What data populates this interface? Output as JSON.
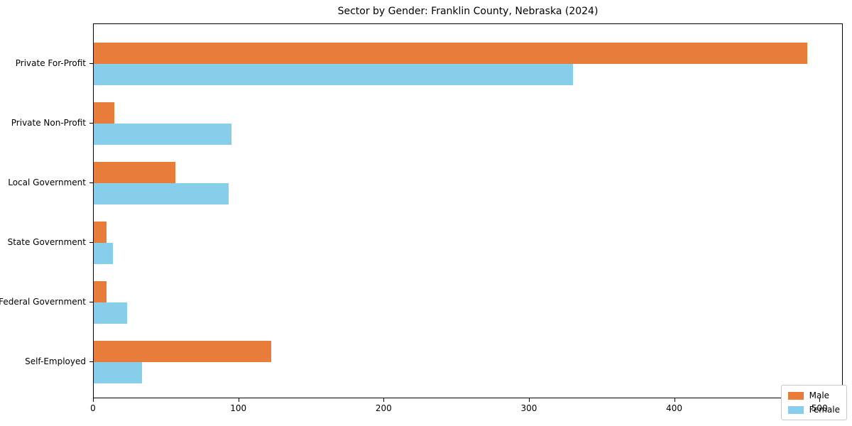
{
  "title": "Sector by Gender: Franklin County, Nebraska (2024)",
  "legend": {
    "male_label": "Male",
    "female_label": "Female"
  },
  "colors": {
    "male": "#e87d3b",
    "female": "#87ceeb",
    "axis": "#000000",
    "background": "#ffffff",
    "legend_border": "#c9c9c9"
  },
  "chart_data": {
    "type": "bar",
    "orientation": "horizontal",
    "title": "Sector by Gender: Franklin County, Nebraska (2024)",
    "categories": [
      "Private For-Profit",
      "Private Non-Profit",
      "Local Government",
      "State Government",
      "Federal Government",
      "Self-Employed"
    ],
    "series": [
      {
        "name": "Male",
        "color": "#e87d3b",
        "values": [
          491,
          14,
          56,
          9,
          9,
          122
        ]
      },
      {
        "name": "Female",
        "color": "#87ceeb",
        "values": [
          330,
          95,
          93,
          13,
          23,
          33
        ]
      }
    ],
    "xlabel": "",
    "ylabel": "",
    "x_ticks": [
      0,
      100,
      200,
      300,
      400,
      500
    ],
    "x_tick_labels": [
      "0",
      "100",
      "200",
      "300",
      "400",
      "500"
    ],
    "xlim": [
      0,
      516
    ],
    "grid": false,
    "legend_position": "lower right"
  }
}
